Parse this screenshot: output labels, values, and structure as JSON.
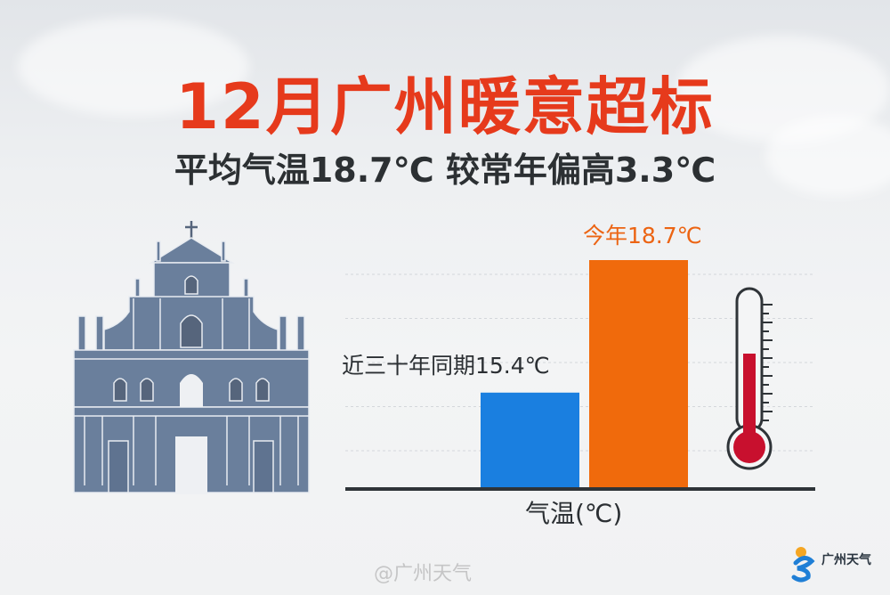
{
  "header": {
    "title": "12月广州暖意超标",
    "subtitle": "平均气温18.7℃ 较常年偏高3.3℃"
  },
  "chart_data": {
    "type": "bar",
    "categories": [
      "近三十年同期",
      "今年"
    ],
    "values": [
      15.4,
      18.7
    ],
    "data_labels": [
      "近三十年同期15.4℃",
      "今年18.7℃"
    ],
    "colors": [
      "#1a7fe0",
      "#f06a0c"
    ],
    "xlabel": "气温(℃)",
    "ylabel": "",
    "ylim": [
      13,
      19.4
    ],
    "grid": true
  },
  "branding": {
    "logo_text": "广州天气",
    "watermark": "@广州天气"
  },
  "colors": {
    "title": "#e63a1c",
    "church": "#6a7f9c",
    "thermometer_fill": "#c8102e"
  }
}
